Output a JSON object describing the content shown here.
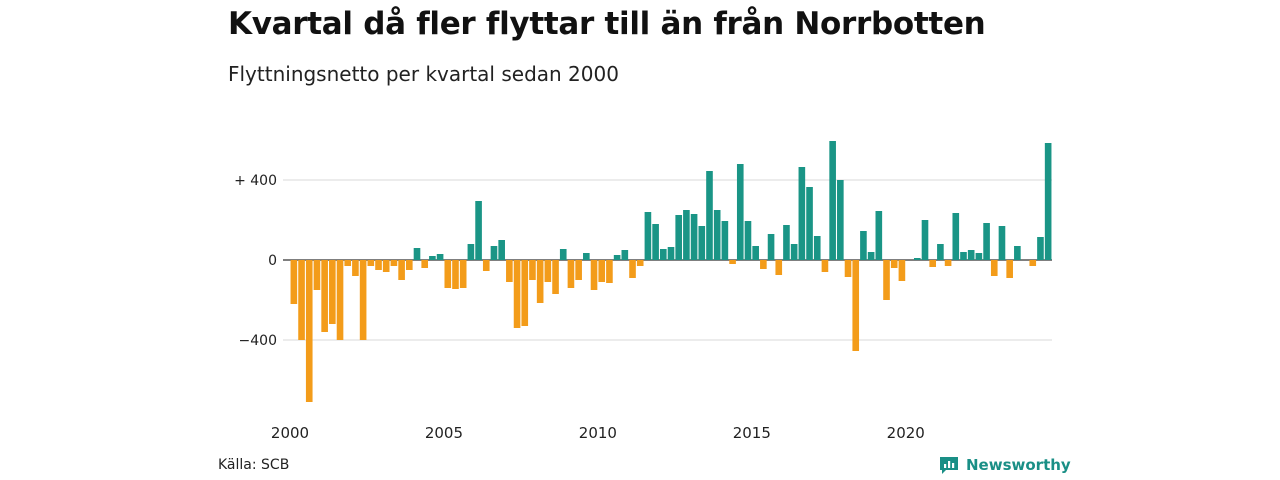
{
  "title": "Kvartal då fler flyttar till än från Norrbotten",
  "subtitle": "Flyttningsnetto per kvartal sedan 2000",
  "source": "Källa: SCB",
  "brand": "Newsworthy",
  "colors": {
    "positive": "#1a9586",
    "negative": "#f39c1a",
    "grid": "#d9d9d9",
    "brand": "#1a8f86"
  },
  "chart_data": {
    "type": "bar",
    "x_tick_labels": [
      "2000",
      "2005",
      "2010",
      "2015",
      "2020"
    ],
    "y_tick_labels": [
      "+ 400",
      "0",
      "−400"
    ],
    "y_ticks": [
      400,
      0,
      -400
    ],
    "ylim": [
      -720,
      600
    ],
    "start_year": 2000,
    "periods_per_year": 4,
    "values": [
      -220,
      -400,
      -710,
      -150,
      -360,
      -320,
      -400,
      -30,
      -80,
      -400,
      -30,
      -50,
      -60,
      -30,
      -100,
      -50,
      60,
      -40,
      20,
      30,
      -140,
      -145,
      -140,
      80,
      295,
      -55,
      70,
      100,
      -110,
      -340,
      -330,
      -100,
      -215,
      -110,
      -170,
      55,
      -140,
      -100,
      35,
      -150,
      -110,
      -115,
      25,
      50,
      -90,
      -30,
      240,
      180,
      55,
      65,
      225,
      250,
      230,
      170,
      445,
      250,
      195,
      -20,
      480,
      195,
      70,
      -45,
      130,
      -75,
      175,
      80,
      465,
      365,
      120,
      -60,
      595,
      400,
      -85,
      -455,
      145,
      40,
      245,
      -200,
      -40,
      -105,
      0,
      10,
      200,
      -35,
      80,
      -30,
      235,
      40,
      50,
      35,
      185,
      -80,
      170,
      -90,
      70,
      0,
      -30,
      115,
      585
    ]
  }
}
